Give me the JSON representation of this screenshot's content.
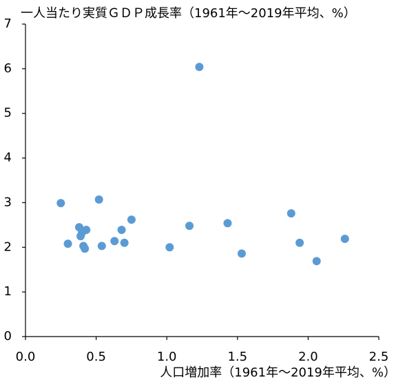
{
  "chart_data": {
    "type": "scatter",
    "title": "一人当たり実質ＧＤＰ成長率（1961年～2019年平均、%）",
    "x_label": "人口増加率（1961年～2019年平均、%）",
    "color": "#5b9bd5",
    "x": [
      0.25,
      0.3,
      0.38,
      0.4,
      0.39,
      0.41,
      0.42,
      0.43,
      0.52,
      0.54,
      0.63,
      0.68,
      0.7,
      0.75,
      1.02,
      1.16,
      1.23,
      1.43,
      1.53,
      1.88,
      1.94,
      2.06,
      2.26
    ],
    "values": [
      2.99,
      2.08,
      2.45,
      2.33,
      2.25,
      2.03,
      1.97,
      2.39,
      3.07,
      2.03,
      2.14,
      2.39,
      2.1,
      2.62,
      2.0,
      2.48,
      6.04,
      2.54,
      1.86,
      2.76,
      2.1,
      1.69,
      2.19
    ],
    "xlim": [
      0,
      2.5
    ],
    "xticks": [
      {
        "value": 0,
        "label": "0.0"
      },
      {
        "value": 0.5,
        "label": "0.5"
      },
      {
        "value": 1,
        "label": "1.0"
      },
      {
        "value": 1.5,
        "label": "1.5"
      },
      {
        "value": 2,
        "label": "2.0"
      },
      {
        "value": 2.5,
        "label": "2.5"
      }
    ],
    "ylim": [
      0,
      7
    ],
    "yticks": [
      0,
      1,
      2,
      3,
      4,
      5,
      6,
      7
    ]
  }
}
